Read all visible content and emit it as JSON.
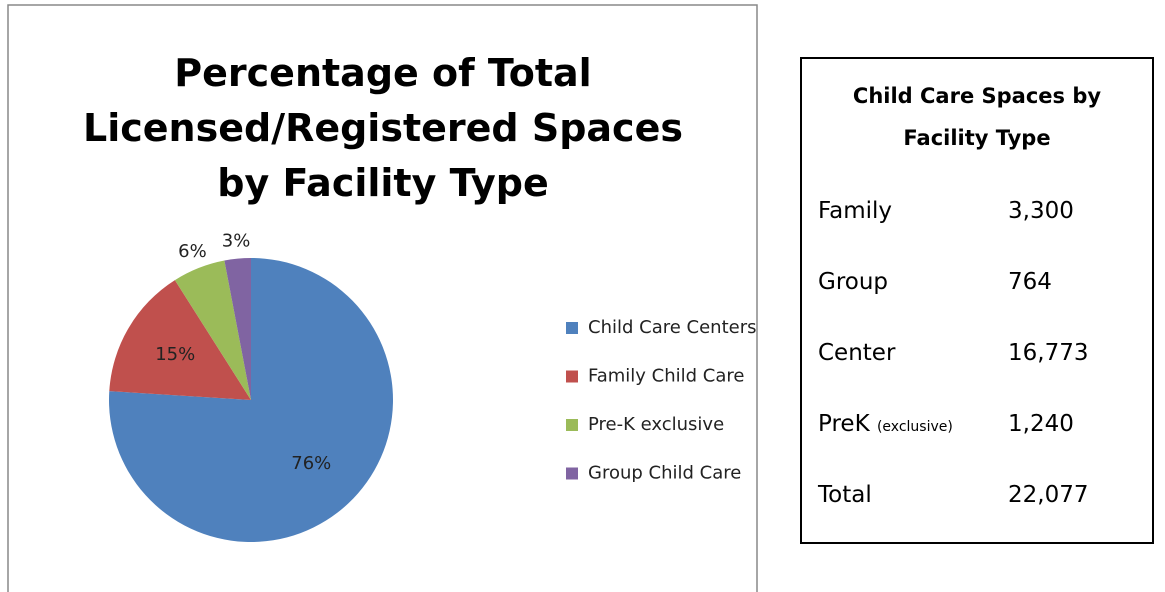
{
  "chart_data": {
    "type": "pie",
    "title": "Percentage of Total Licensed/Registered Spaces by Facility Type",
    "categories": [
      "Child Care Centers",
      "Family Child Care",
      "Pre-K exclusive",
      "Group Child Care"
    ],
    "values": [
      76,
      15,
      6,
      3
    ],
    "value_labels": [
      "76%",
      "15%",
      "6%",
      "3%"
    ],
    "colors": [
      "#4f81bd",
      "#c0504d",
      "#9bbb59",
      "#8064a2"
    ],
    "legend": "right"
  },
  "table": {
    "title": "Child Care Spaces by Facility Type",
    "rows": [
      [
        "Family",
        "3,300"
      ],
      [
        "Group",
        "764"
      ],
      [
        "Center",
        "16,773"
      ],
      [
        "PreK",
        "(exclusive)",
        "1,240"
      ],
      [
        "Total",
        "22,077"
      ]
    ]
  }
}
